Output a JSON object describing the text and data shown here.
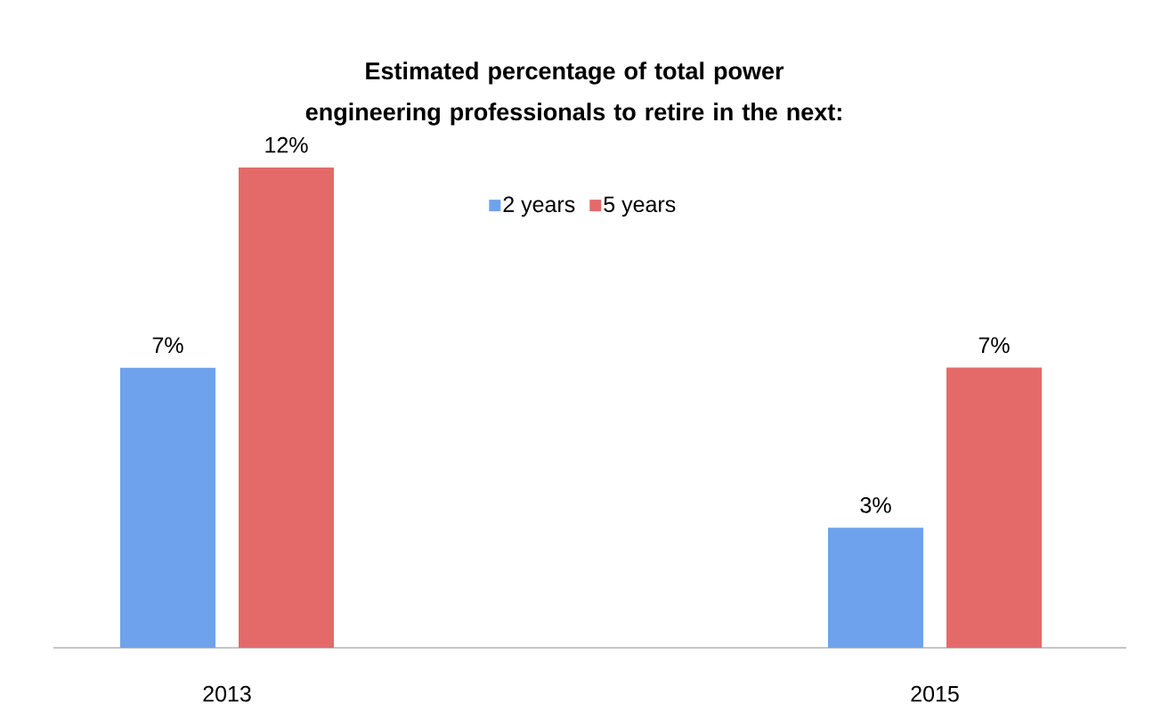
{
  "chart_data": {
    "type": "bar",
    "title": "Estimated percentage of total power engineering professionals to retire in the next:",
    "categories": [
      "2013",
      "2015"
    ],
    "series": [
      {
        "name": "2 years",
        "color": "#6ea2ec",
        "values": [
          7,
          3
        ],
        "value_labels": [
          "7%",
          "3%"
        ]
      },
      {
        "name": "5 years",
        "color": "#e46a6a",
        "values": [
          12,
          7
        ],
        "value_labels": [
          "12%",
          "7%"
        ]
      }
    ],
    "legend": "top"
  }
}
